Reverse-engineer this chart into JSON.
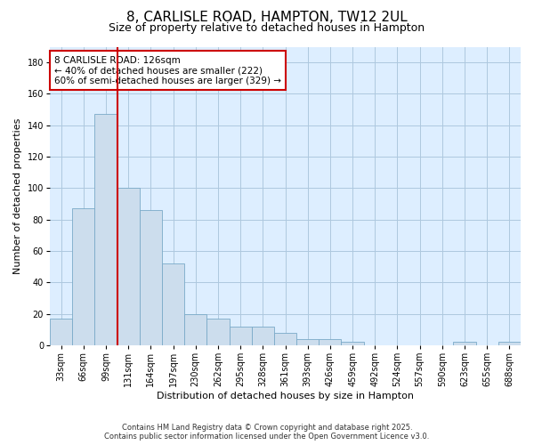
{
  "title1": "8, CARLISLE ROAD, HAMPTON, TW12 2UL",
  "title2": "Size of property relative to detached houses in Hampton",
  "xlabel": "Distribution of detached houses by size in Hampton",
  "ylabel": "Number of detached properties",
  "categories": [
    "33sqm",
    "66sqm",
    "99sqm",
    "131sqm",
    "164sqm",
    "197sqm",
    "230sqm",
    "262sqm",
    "295sqm",
    "328sqm",
    "361sqm",
    "393sqm",
    "426sqm",
    "459sqm",
    "492sqm",
    "524sqm",
    "557sqm",
    "590sqm",
    "623sqm",
    "655sqm",
    "688sqm"
  ],
  "values": [
    17,
    87,
    147,
    100,
    86,
    52,
    20,
    17,
    12,
    12,
    8,
    4,
    4,
    2,
    0,
    0,
    0,
    0,
    2,
    0,
    2
  ],
  "bar_color": "#ccdded",
  "bar_edge_color": "#7aaac8",
  "grid_color": "#aec8de",
  "plot_bg_color": "#ddeeff",
  "background_color": "#ffffff",
  "marker_label": "8 CARLISLE ROAD: 126sqm",
  "marker_sub1": "← 40% of detached houses are smaller (222)",
  "marker_sub2": "60% of semi-detached houses are larger (329) →",
  "vline_color": "#cc0000",
  "annotation_box_color": "#cc0000",
  "vline_x": 2.5,
  "ylim": [
    0,
    190
  ],
  "yticks": [
    0,
    20,
    40,
    60,
    80,
    100,
    120,
    140,
    160,
    180
  ],
  "footer1": "Contains HM Land Registry data © Crown copyright and database right 2025.",
  "footer2": "Contains public sector information licensed under the Open Government Licence v3.0.",
  "title_fontsize": 11,
  "subtitle_fontsize": 9,
  "axis_label_fontsize": 8,
  "tick_fontsize": 7,
  "footer_fontsize": 6,
  "annot_fontsize": 7.5
}
